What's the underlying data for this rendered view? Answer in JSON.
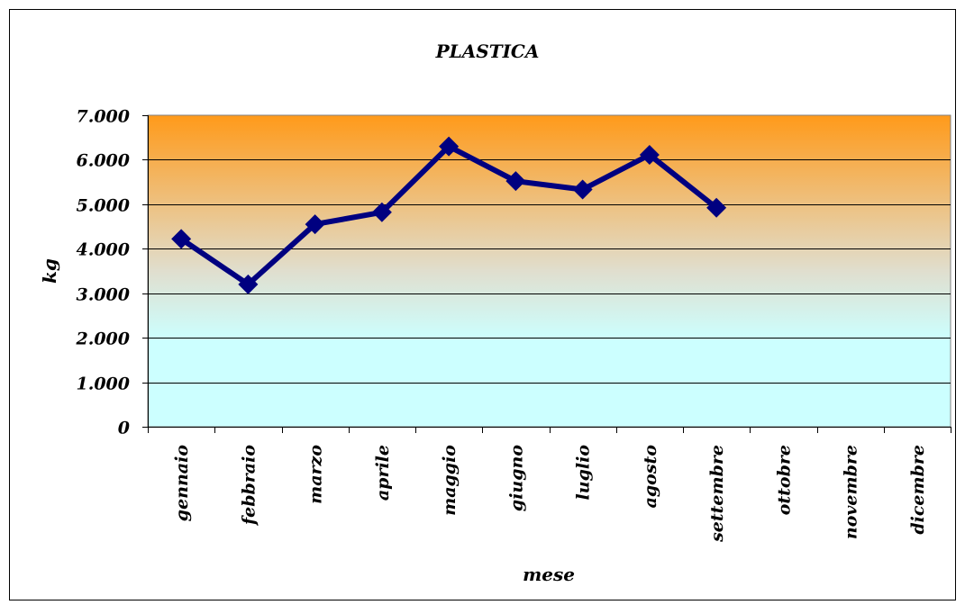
{
  "chart_data": {
    "type": "line",
    "title": "PLASTICA",
    "xlabel": "mese",
    "ylabel": "kg",
    "categories": [
      "gennaio",
      "febbraio",
      "marzo",
      "aprile",
      "maggio",
      "giugno",
      "luglio",
      "agosto",
      "settembre",
      "ottobre",
      "novembre",
      "dicembre"
    ],
    "series": [
      {
        "values": [
          4220,
          3200,
          4550,
          4820,
          6300,
          5520,
          5330,
          6110,
          4920,
          null,
          null,
          null
        ],
        "color": "#000080"
      }
    ],
    "ylim": [
      0,
      7000
    ],
    "yticks": [
      0,
      1000,
      2000,
      3000,
      4000,
      5000,
      6000,
      7000
    ],
    "ytick_labels": [
      "0",
      "1.000",
      "2.000",
      "3.000",
      "4.000",
      "5.000",
      "6.000",
      "7.000"
    ],
    "grid": true,
    "legend": "none",
    "plot_background": {
      "top": "#ff9a1a",
      "mid": "#e0dece",
      "bottom": "#ccffff"
    }
  }
}
